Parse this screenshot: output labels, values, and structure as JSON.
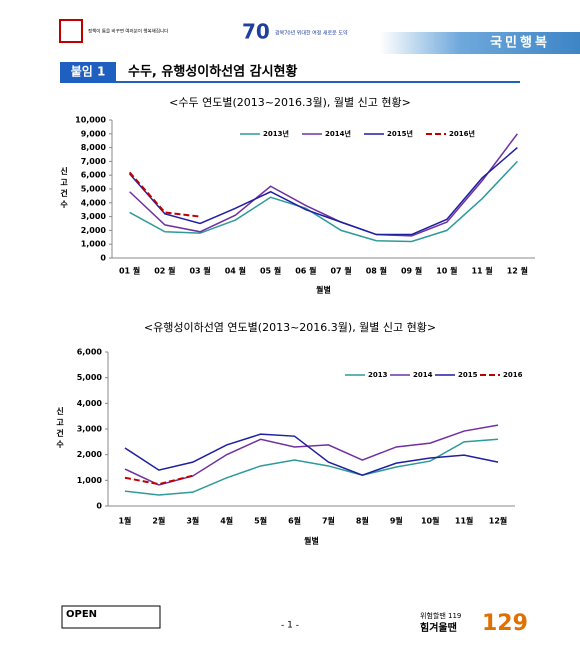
{
  "header": {
    "slogan": "정책이 통을 바꾸면 여러분이 행복해집니다",
    "anniversary": "70",
    "anniversary_text": "광복70년 위대한 여정 새로운 도약",
    "banner": "국민행복"
  },
  "section": {
    "badge": "붙임 1",
    "title": "수두, 유행성이하선염 감시현황"
  },
  "chart_data": [
    {
      "type": "line",
      "title": "<수두 연도별(2013~2016.3월), 월별 신고 현황>",
      "x_label": "월별",
      "y_label": "신고건수",
      "categories": [
        "01 월",
        "02 월",
        "03 월",
        "04 월",
        "05 월",
        "06 월",
        "07 월",
        "08 월",
        "09 월",
        "10 월",
        "11 월",
        "12 월"
      ],
      "ylim": [
        0,
        10000
      ],
      "yticks": [
        0,
        {
          "value": 1000,
          "label": "1,000"
        },
        {
          "value": 2000,
          "label": "2,000"
        },
        {
          "value": 3000,
          "label": "3,000"
        },
        {
          "value": 4000,
          "label": "4,000"
        },
        {
          "value": 5000,
          "label": "5,000"
        },
        {
          "value": 6000,
          "label": "6,000"
        },
        {
          "value": 7000,
          "label": "7,000"
        },
        {
          "value": 8000,
          "label": "8,000"
        },
        {
          "value": 9000,
          "label": "9,000"
        },
        {
          "value": 10000,
          "label": "10,000"
        }
      ],
      "series": [
        {
          "name": "2013년",
          "color": "#2e9a9a",
          "values": [
            3300,
            1900,
            1800,
            2750,
            4400,
            3600,
            2000,
            1250,
            1200,
            2000,
            4300,
            7000
          ]
        },
        {
          "name": "2014년",
          "color": "#7030a0",
          "values": [
            4800,
            2400,
            1900,
            3100,
            5200,
            3800,
            2600,
            1700,
            1600,
            2600,
            5600,
            9000
          ]
        },
        {
          "name": "2015년",
          "color": "#1f1fa0",
          "values": [
            6100,
            3200,
            2500,
            3600,
            4800,
            3500,
            2600,
            1700,
            1700,
            2800,
            5800,
            8000
          ]
        },
        {
          "name": "2016년",
          "color": "#c00000",
          "dashed": true,
          "values": [
            6200,
            3300,
            3000,
            null,
            null,
            null,
            null,
            null,
            null,
            null,
            null,
            null
          ]
        }
      ]
    },
    {
      "type": "line",
      "title": "<유행성이하선염 연도별(2013~2016.3월), 월별 신고 현황>",
      "x_label": "월별",
      "y_label": "신고건수",
      "categories": [
        "1월",
        "2월",
        "3월",
        "4월",
        "5월",
        "6월",
        "7월",
        "8월",
        "9월",
        "10월",
        "11월",
        "12월"
      ],
      "ylim": [
        0,
        6000
      ],
      "yticks": [
        0,
        {
          "value": 1000,
          "label": "1,000"
        },
        {
          "value": 2000,
          "label": "2,000"
        },
        {
          "value": 3000,
          "label": "3,000"
        },
        {
          "value": 4000,
          "label": "4,000"
        },
        {
          "value": 5000,
          "label": "5,000"
        },
        {
          "value": 6000,
          "label": "6,000"
        }
      ],
      "series": [
        {
          "name": "2013",
          "color": "#2e9a9a",
          "values": [
            580,
            430,
            540,
            1100,
            1560,
            1790,
            1560,
            1200,
            1520,
            1750,
            2500,
            2600
          ]
        },
        {
          "name": "2014",
          "color": "#7030a0",
          "values": [
            1440,
            820,
            1170,
            2000,
            2600,
            2300,
            2380,
            1790,
            2300,
            2450,
            2920,
            3150
          ]
        },
        {
          "name": "2015",
          "color": "#1f1fa0",
          "values": [
            2260,
            1400,
            1710,
            2380,
            2800,
            2720,
            1710,
            1200,
            1670,
            1870,
            1980,
            1710
          ]
        },
        {
          "name": "2016",
          "color": "#c00000",
          "dashed": true,
          "values": [
            1100,
            850,
            1180,
            null,
            null,
            null,
            null,
            null,
            null,
            null,
            null,
            null
          ]
        }
      ]
    }
  ],
  "footer": {
    "open": "OPEN",
    "page": "- 1 -",
    "hotline1": "위험할땐 119",
    "hotline2": "힘겨울땐",
    "hotline_number": "129"
  }
}
